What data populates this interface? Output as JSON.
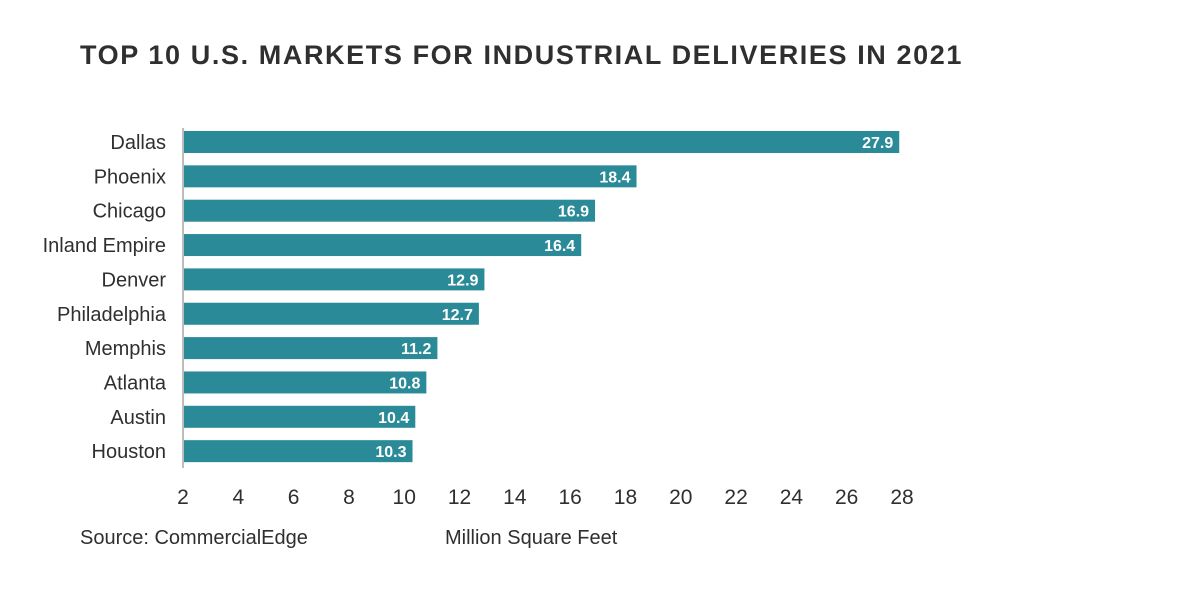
{
  "title": "TOP 10 U.S. MARKETS FOR INDUSTRIAL DELIVERIES IN 2021",
  "source": "Source: CommercialEdge",
  "colors": {
    "bar": "#2a8a98",
    "axis": "#bdbdbd",
    "text": "#2f2f2f"
  },
  "chart_data": {
    "type": "bar",
    "orientation": "horizontal",
    "title": "TOP 10 U.S. MARKETS FOR INDUSTRIAL DELIVERIES IN 2021",
    "xlabel": "Million Square Feet",
    "ylabel": "",
    "categories": [
      "Dallas",
      "Phoenix",
      "Chicago",
      "Inland Empire",
      "Denver",
      "Philadelphia",
      "Memphis",
      "Atlanta",
      "Austin",
      "Houston"
    ],
    "values": [
      27.9,
      18.4,
      16.9,
      16.4,
      12.9,
      12.7,
      11.2,
      10.8,
      10.4,
      10.3
    ],
    "value_labels": [
      "27.9",
      "18.4",
      "16.9",
      "16.4",
      "12.9",
      "12.7",
      "11.2",
      "10.8",
      "10.4",
      "10.3"
    ],
    "xlim": [
      2,
      28
    ],
    "xticks": [
      2,
      4,
      6,
      8,
      10,
      12,
      14,
      16,
      18,
      20,
      22,
      24,
      26,
      28
    ],
    "grid": false,
    "legend": "none"
  }
}
